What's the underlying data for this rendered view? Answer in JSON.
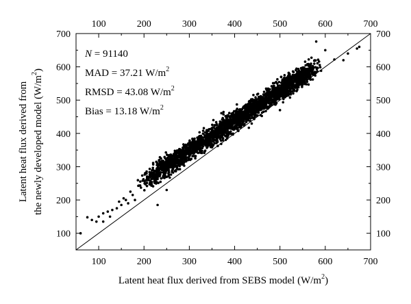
{
  "chart_data": {
    "type": "scatter",
    "title": "",
    "xlabel": "Latent heat flux derived from SEBS model (W/m",
    "xlabel_sup": "2",
    "xlabel_tail": ")",
    "ylabel_line1": "Latent heat flux derived from",
    "ylabel_line2": "the newly developed model (W/m",
    "ylabel_sup": "2",
    "ylabel_tail": ")",
    "xlim": [
      50,
      700
    ],
    "ylim": [
      50,
      700
    ],
    "x_ticks": [
      100,
      200,
      300,
      400,
      500,
      600,
      700
    ],
    "y_ticks": [
      100,
      200,
      300,
      400,
      500,
      600,
      700
    ],
    "x_tick_labels": [
      "100",
      "200",
      "300",
      "400",
      "500",
      "600",
      "700"
    ],
    "y_tick_labels": [
      "100",
      "200",
      "300",
      "400",
      "500",
      "600",
      "700"
    ],
    "reference_line": {
      "label": "1:1",
      "from": [
        50,
        50
      ],
      "to": [
        700,
        700
      ]
    },
    "marker_color": "#000000",
    "grid": false,
    "stats": {
      "n_prefix": "N",
      "n_value": " = 91140",
      "mad": "MAD = 37.21 W/m",
      "rmsd": "RMSD = 43.08 W/m",
      "bias": "Bias = 13.18 W/m",
      "unit_sup": "2"
    },
    "trend": {
      "slope": 0.9,
      "intercept": 78
    },
    "scatter_x_range": [
      150,
      630
    ],
    "scatter_spread": 22,
    "points": [
      {
        "x": 60,
        "y": 100
      },
      {
        "x": 75,
        "y": 148
      },
      {
        "x": 85,
        "y": 140
      },
      {
        "x": 95,
        "y": 135
      },
      {
        "x": 100,
        "y": 150
      },
      {
        "x": 110,
        "y": 135
      },
      {
        "x": 110,
        "y": 160
      },
      {
        "x": 120,
        "y": 165
      },
      {
        "x": 125,
        "y": 150
      },
      {
        "x": 130,
        "y": 170
      },
      {
        "x": 140,
        "y": 175
      },
      {
        "x": 145,
        "y": 195
      },
      {
        "x": 150,
        "y": 185
      },
      {
        "x": 155,
        "y": 205
      },
      {
        "x": 160,
        "y": 200
      },
      {
        "x": 165,
        "y": 190
      },
      {
        "x": 170,
        "y": 225
      },
      {
        "x": 175,
        "y": 215
      },
      {
        "x": 180,
        "y": 200
      },
      {
        "x": 230,
        "y": 185
      },
      {
        "x": 250,
        "y": 230
      },
      {
        "x": 580,
        "y": 676
      },
      {
        "x": 620,
        "y": 622
      },
      {
        "x": 640,
        "y": 620
      },
      {
        "x": 650,
        "y": 640
      },
      {
        "x": 670,
        "y": 655
      },
      {
        "x": 675,
        "y": 660
      },
      {
        "x": 600,
        "y": 650
      },
      {
        "x": 560,
        "y": 555
      },
      {
        "x": 500,
        "y": 470
      }
    ]
  }
}
